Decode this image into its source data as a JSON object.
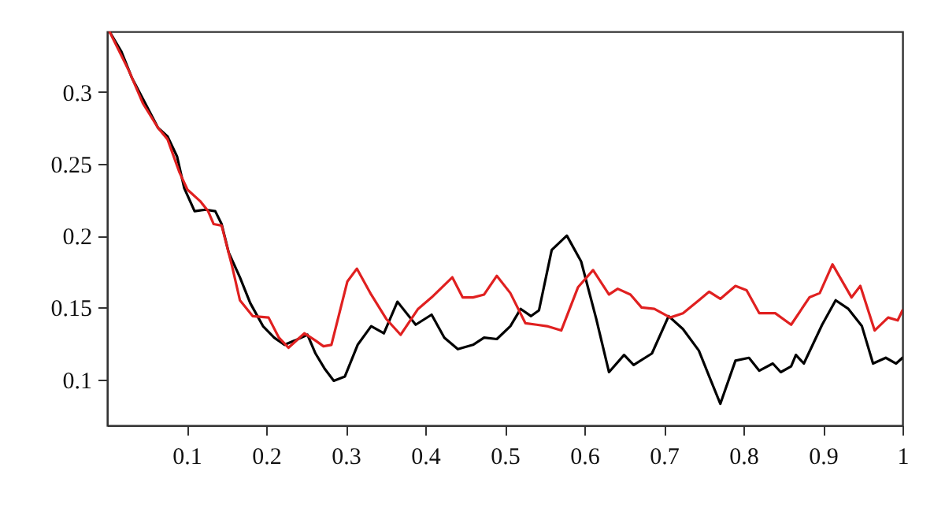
{
  "chart_data": {
    "type": "line",
    "xlim": [
      0,
      1
    ],
    "ylim": [
      0.068,
      0.342
    ],
    "xticks": [
      0.1,
      0.2,
      0.3,
      0.4,
      0.5,
      0.6,
      0.7,
      0.8,
      0.9,
      1
    ],
    "yticks": [
      0.1,
      0.15,
      0.2,
      0.25,
      0.3
    ],
    "grid": false,
    "line_style": "solid",
    "series": [
      {
        "color": "#000000",
        "x": [
          0.003,
          0.018,
          0.031,
          0.048,
          0.064,
          0.076,
          0.088,
          0.097,
          0.11,
          0.124,
          0.136,
          0.144,
          0.153,
          0.167,
          0.18,
          0.196,
          0.21,
          0.223,
          0.236,
          0.252,
          0.262,
          0.274,
          0.285,
          0.299,
          0.315,
          0.332,
          0.348,
          0.365,
          0.388,
          0.408,
          0.424,
          0.441,
          0.46,
          0.474,
          0.49,
          0.507,
          0.52,
          0.533,
          0.543,
          0.559,
          0.578,
          0.596,
          0.615,
          0.631,
          0.65,
          0.662,
          0.685,
          0.706,
          0.724,
          0.744,
          0.757,
          0.771,
          0.79,
          0.807,
          0.82,
          0.837,
          0.847,
          0.86,
          0.866,
          0.876,
          0.899,
          0.916,
          0.932,
          0.949,
          0.963,
          0.979,
          0.992,
          1.0
        ],
        "values": [
          0.342,
          0.328,
          0.31,
          0.292,
          0.275,
          0.269,
          0.255,
          0.233,
          0.217,
          0.218,
          0.217,
          0.208,
          0.188,
          0.171,
          0.153,
          0.137,
          0.129,
          0.124,
          0.127,
          0.131,
          0.118,
          0.107,
          0.099,
          0.102,
          0.124,
          0.137,
          0.132,
          0.154,
          0.138,
          0.145,
          0.129,
          0.121,
          0.124,
          0.129,
          0.128,
          0.137,
          0.149,
          0.144,
          0.148,
          0.19,
          0.2,
          0.182,
          0.142,
          0.105,
          0.117,
          0.11,
          0.118,
          0.144,
          0.135,
          0.12,
          0.102,
          0.083,
          0.113,
          0.115,
          0.106,
          0.111,
          0.105,
          0.109,
          0.117,
          0.111,
          0.138,
          0.155,
          0.149,
          0.137,
          0.111,
          0.115,
          0.111,
          0.115
        ]
      },
      {
        "color": "#e02020",
        "x": [
          0.003,
          0.028,
          0.045,
          0.064,
          0.076,
          0.091,
          0.101,
          0.117,
          0.127,
          0.134,
          0.144,
          0.157,
          0.167,
          0.183,
          0.203,
          0.216,
          0.228,
          0.248,
          0.262,
          0.272,
          0.282,
          0.302,
          0.314,
          0.332,
          0.351,
          0.369,
          0.391,
          0.408,
          0.434,
          0.447,
          0.46,
          0.474,
          0.49,
          0.507,
          0.526,
          0.54,
          0.553,
          0.571,
          0.592,
          0.611,
          0.631,
          0.642,
          0.658,
          0.672,
          0.688,
          0.708,
          0.724,
          0.744,
          0.757,
          0.771,
          0.79,
          0.804,
          0.82,
          0.84,
          0.86,
          0.883,
          0.896,
          0.912,
          0.936,
          0.947,
          0.965,
          0.982,
          0.994,
          1.0
        ],
        "values": [
          0.342,
          0.314,
          0.292,
          0.275,
          0.267,
          0.244,
          0.232,
          0.224,
          0.217,
          0.208,
          0.207,
          0.179,
          0.155,
          0.144,
          0.143,
          0.129,
          0.122,
          0.132,
          0.127,
          0.123,
          0.124,
          0.168,
          0.177,
          0.159,
          0.142,
          0.131,
          0.149,
          0.157,
          0.171,
          0.157,
          0.157,
          0.159,
          0.172,
          0.16,
          0.139,
          0.138,
          0.137,
          0.134,
          0.164,
          0.176,
          0.159,
          0.163,
          0.159,
          0.15,
          0.149,
          0.143,
          0.146,
          0.155,
          0.161,
          0.156,
          0.165,
          0.162,
          0.146,
          0.146,
          0.138,
          0.157,
          0.16,
          0.18,
          0.157,
          0.165,
          0.134,
          0.143,
          0.141,
          0.148
        ]
      }
    ]
  }
}
